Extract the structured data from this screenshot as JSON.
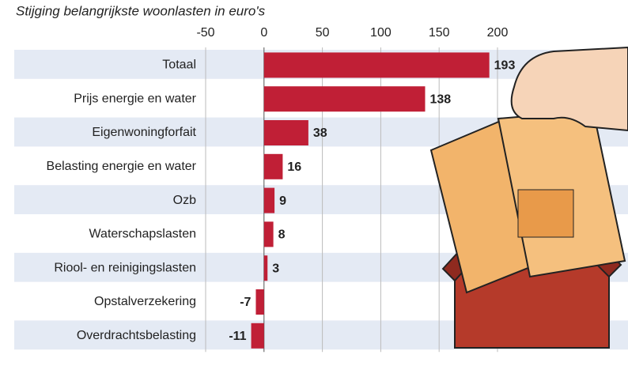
{
  "chart_data": {
    "type": "bar",
    "orientation": "horizontal",
    "title": "Stijging belangrijkste woonlasten in euro's",
    "categories": [
      "Totaal",
      "Prijs energie en water",
      "Eigenwoningforfait",
      "Belasting energie en water",
      "Ozb",
      "Waterschapslasten",
      "Riool- en reinigingslasten",
      "Opstalverzekering",
      "Overdrachtsbelasting"
    ],
    "values": [
      193,
      138,
      38,
      16,
      9,
      8,
      3,
      -7,
      -11
    ],
    "color": "#c01f36",
    "xlim": [
      -50,
      200
    ],
    "xticks": [
      -50,
      0,
      50,
      100,
      150,
      200
    ],
    "grid": true
  }
}
